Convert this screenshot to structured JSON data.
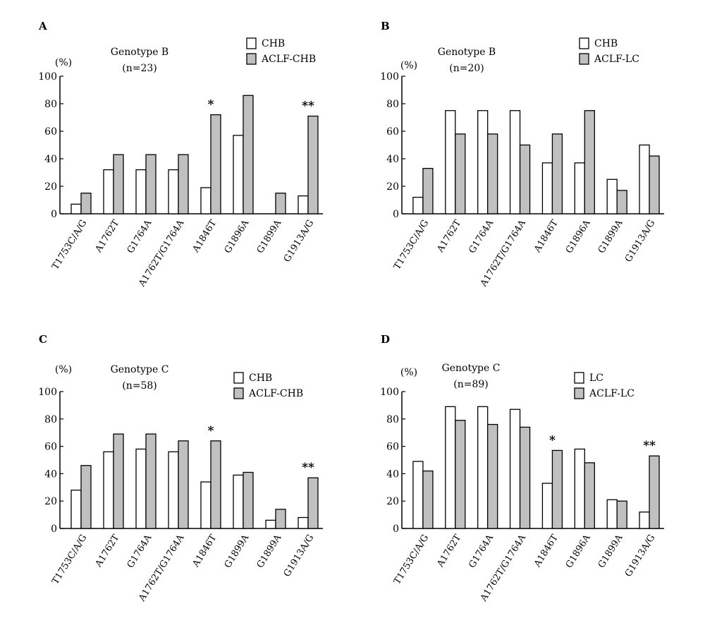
{
  "chart_data": [
    {
      "type": "bar",
      "panel": "A",
      "title": "Genotype B",
      "subtitle": "(n=23)",
      "unit": "(%)",
      "categories": [
        "T1753C/A/G",
        "A1762T",
        "G1764A",
        "A1762T/G1764A",
        "A1846T",
        "G1896A",
        "G1899A",
        "G1913A/G"
      ],
      "series": [
        {
          "name": "CHB",
          "values": [
            7,
            32,
            32,
            32,
            19,
            57,
            0,
            13
          ]
        },
        {
          "name": "ACLF-CHB",
          "values": [
            15,
            43,
            43,
            43,
            72,
            86,
            15,
            71
          ]
        }
      ],
      "annotations": [
        "",
        "",
        "",
        "",
        "*",
        "",
        "",
        "**"
      ],
      "ylim": [
        0,
        100
      ],
      "yticks": [
        "100",
        "80",
        "60",
        "40",
        "20",
        "0"
      ],
      "colors": {
        "series0": "#ffffff",
        "series1": "#c0c0c0"
      },
      "legend": "top-right"
    },
    {
      "type": "bar",
      "panel": "B",
      "title": "Genotype B",
      "subtitle": "(n=20)",
      "unit": "(%)",
      "categories": [
        "T1753C/A/G",
        "A1762T",
        "G1764A",
        "A1762T/G1764A",
        "A1846T",
        "G1896A",
        "G1899A",
        "G1913A/G"
      ],
      "series": [
        {
          "name": "CHB",
          "values": [
            12,
            75,
            75,
            75,
            37,
            37,
            25,
            50
          ]
        },
        {
          "name": "ACLF-LC",
          "values": [
            33,
            58,
            58,
            50,
            58,
            75,
            17,
            42
          ]
        }
      ],
      "annotations": [
        "",
        "",
        "",
        "",
        "",
        "",
        "",
        ""
      ],
      "ylim": [
        0,
        100
      ],
      "yticks": [
        "100",
        "80",
        "60",
        "40",
        "20",
        "0"
      ],
      "colors": {
        "series0": "#ffffff",
        "series1": "#c0c0c0"
      },
      "legend": "top-right"
    },
    {
      "type": "bar",
      "panel": "C",
      "title": "Genotype C",
      "subtitle": "(n=58)",
      "unit": "(%)",
      "categories": [
        "T1753C/A/G",
        "A1762T",
        "G1764A",
        "A1762T/G1764A",
        "A1846T",
        "G1899A",
        "G1899A",
        "G1913A/G"
      ],
      "series": [
        {
          "name": "CHB",
          "values": [
            28,
            56,
            58,
            56,
            34,
            39,
            6,
            8
          ]
        },
        {
          "name": "ACLF-CHB",
          "values": [
            46,
            69,
            69,
            64,
            64,
            41,
            14,
            37
          ]
        }
      ],
      "annotations": [
        "",
        "",
        "",
        "",
        "*",
        "",
        "",
        "**"
      ],
      "ylim": [
        0,
        100
      ],
      "yticks": [
        "100",
        "80",
        "60",
        "40",
        "20",
        "0"
      ],
      "colors": {
        "series0": "#ffffff",
        "series1": "#c0c0c0"
      },
      "legend": "top-right"
    },
    {
      "type": "bar",
      "panel": "D",
      "title": "Genotype C",
      "subtitle": "(n=89)",
      "unit": "(%)",
      "categories": [
        "T1753C/A/G",
        "A1762T",
        "G1764A",
        "A1762T/G1764A",
        "A1846T",
        "G1896A",
        "G1899A",
        "G1913A/G"
      ],
      "series": [
        {
          "name": "LC",
          "values": [
            49,
            89,
            89,
            87,
            33,
            58,
            21,
            12
          ]
        },
        {
          "name": "ACLF-LC",
          "values": [
            42,
            79,
            76,
            74,
            57,
            48,
            20,
            53
          ]
        }
      ],
      "annotations": [
        "",
        "",
        "",
        "",
        "*",
        "",
        "",
        "**"
      ],
      "ylim": [
        0,
        100
      ],
      "yticks": [
        "100",
        "80",
        "60",
        "40",
        "20",
        "0"
      ],
      "colors": {
        "series0": "#ffffff",
        "series1": "#c0c0c0"
      },
      "legend": "top-right"
    }
  ]
}
